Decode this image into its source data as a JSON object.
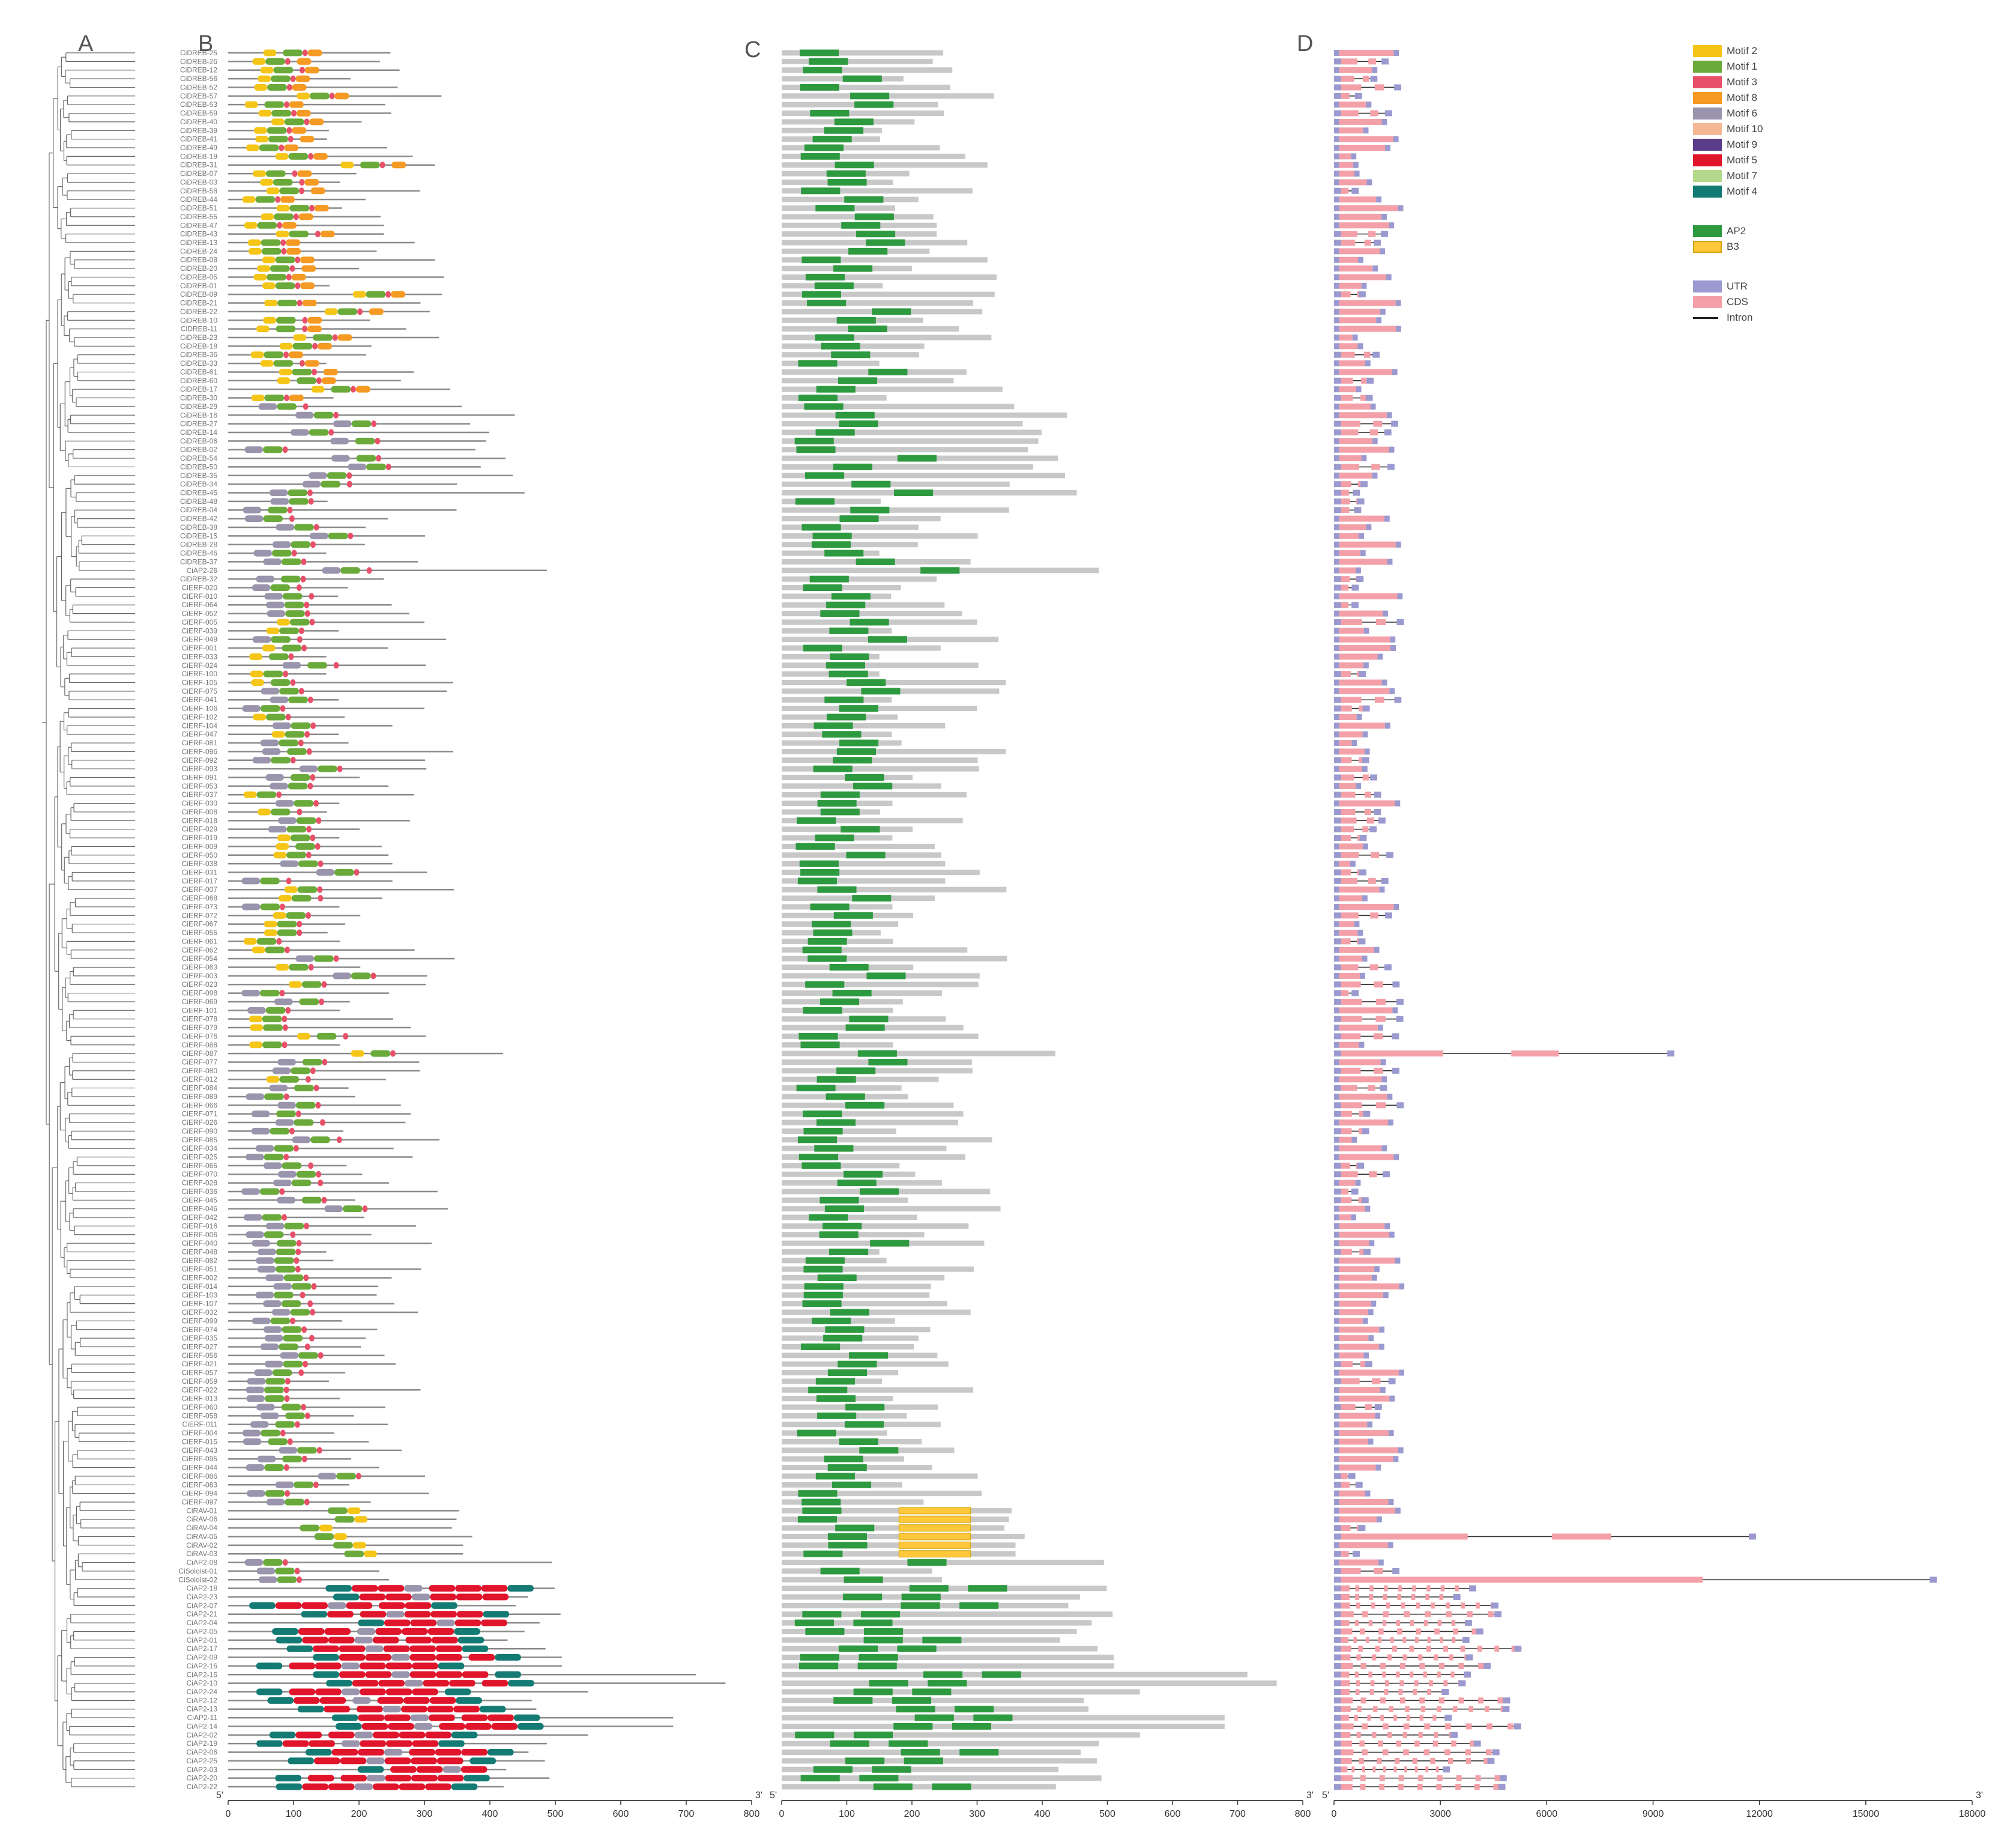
{
  "panels": {
    "a": "A",
    "b": "B",
    "c": "C",
    "d": "D"
  },
  "genes": [
    "CiDREB-25",
    "CiDREB-26",
    "CiDREB-12",
    "CiDREB-56",
    "CiDREB-52",
    "CiDREB-57",
    "CiDREB-53",
    "CiDREB-59",
    "CiDREB-40",
    "CiDREB-39",
    "CiDREB-41",
    "CiDREB-49",
    "CiDREB-19",
    "CiDREB-31",
    "CiDREB-07",
    "CiDREB-03",
    "CiDREB-58",
    "CiDREB-44",
    "CiDREB-51",
    "CiDREB-55",
    "CiDREB-47",
    "CiDREB-43",
    "CiDREB-13",
    "CiDREB-24",
    "CiDREB-08",
    "CiDREB-20",
    "CiDREB-05",
    "CiDREB-01",
    "CiDREB-09",
    "CiDREB-21",
    "CiDREB-22",
    "CiDREB-10",
    "CiDREB-11",
    "CiDREB-23",
    "CiDREB-18",
    "CiDREB-36",
    "CiDREB-33",
    "CiDREB-61",
    "CiDREB-60",
    "CiDREB-17",
    "CiDREB-30",
    "CiDREB-29",
    "CiDREB-16",
    "CiDREB-27",
    "CiDREB-14",
    "CiDREB-06",
    "CiDREB-02",
    "CiDREB-54",
    "CiDREB-50",
    "CiDREB-35",
    "CiDREB-34",
    "CiDREB-45",
    "CiDREB-48",
    "CiDREB-04",
    "CiDREB-42",
    "CiDREB-38",
    "CiDREB-15",
    "CiDREB-28",
    "CiDREB-46",
    "CiDREB-37",
    "CiAP2-26",
    "CiDREB-32",
    "CiERF-020",
    "CiERF-010",
    "CiERF-064",
    "CiERF-052",
    "CiERF-005",
    "CiERF-039",
    "CiERF-049",
    "CiERF-001",
    "CiERF-033",
    "CiERF-024",
    "CiERF-100",
    "CiERF-105",
    "CiERF-075",
    "CiERF-041",
    "CiERF-106",
    "CiERF-102",
    "CiERF-104",
    "CiERF-047",
    "CiERF-081",
    "CiERF-096",
    "CiERF-092",
    "CiERF-093",
    "CiERF-091",
    "CiERF-053",
    "CiERF-037",
    "CiERF-030",
    "CiERF-008",
    "CiERF-018",
    "CiERF-029",
    "CiERF-019",
    "CiERF-009",
    "CiERF-050",
    "CiERF-038",
    "CiERF-031",
    "CiERF-017",
    "CiERF-007",
    "CiERF-068",
    "CiERF-073",
    "CiERF-072",
    "CiERF-067",
    "CiERF-055",
    "CiERF-061",
    "CiERF-062",
    "CiERF-054",
    "CiERF-063",
    "CiERF-003",
    "CiERF-023",
    "CiERF-098",
    "CiERF-069",
    "CiERF-101",
    "CiERF-078",
    "CiERF-079",
    "CiERF-076",
    "CiERF-088",
    "CiERF-087",
    "CiERF-077",
    "CiERF-080",
    "CiERF-012",
    "CiERF-084",
    "CiERF-089",
    "CiERF-066",
    "CiERF-071",
    "CiERF-026",
    "CiERF-090",
    "CiERF-085",
    "CiERF-034",
    "CiERF-025",
    "CiERF-065",
    "CiERF-070",
    "CiERF-028",
    "CiERF-036",
    "CiERF-045",
    "CiERF-046",
    "CiERF-042",
    "CiERF-016",
    "CiERF-006",
    "CiERF-040",
    "CiERF-048",
    "CiERF-082",
    "CiERF-051",
    "CiERF-002",
    "CiERF-014",
    "CiERF-103",
    "CiERF-107",
    "CiERF-032",
    "CiERF-099",
    "CiERF-074",
    "CiERF-035",
    "CiERF-027",
    "CiERF-056",
    "CiERF-021",
    "CiERF-057",
    "CiERF-059",
    "CiERF-022",
    "CiERF-013",
    "CiERF-060",
    "CiERF-058",
    "CiERF-011",
    "CiERF-004",
    "CiERF-015",
    "CiERF-043",
    "CiERF-095",
    "CiERF-044",
    "CiERF-086",
    "CiERF-083",
    "CiERF-094",
    "CiERF-097",
    "CiRAV-01",
    "CiRAV-06",
    "CiRAV-04",
    "CiRAV-05",
    "CiRAV-02",
    "CiRAV-03",
    "CiAP2-08",
    "CiSoloist-01",
    "CiSoloist-02",
    "CiAP2-18",
    "CiAP2-23",
    "CiAP2-07",
    "CiAP2-21",
    "CiAP2-04",
    "CiAP2-05",
    "CiAP2-01",
    "CiAP2-17",
    "CiAP2-09",
    "CiAP2-16",
    "CiAP2-15",
    "CiAP2-10",
    "CiAP2-24",
    "CiAP2-12",
    "CiAP2-13",
    "CiAP2-11",
    "CiAP2-14",
    "CiAP2-02",
    "CiAP2-19",
    "CiAP2-06",
    "CiAP2-25",
    "CiAP2-03",
    "CiAP2-20",
    "CiAP2-22"
  ],
  "legend_motifs": [
    {
      "label": "Motif 2",
      "color": "#f5c518"
    },
    {
      "label": "Motif 1",
      "color": "#6aaa3a"
    },
    {
      "label": "Motif 3",
      "color": "#e8506a"
    },
    {
      "label": "Motif 8",
      "color": "#f59a23"
    },
    {
      "label": "Motif 6",
      "color": "#9a94ad"
    },
    {
      "label": "Motif 10",
      "color": "#f5b895"
    },
    {
      "label": "Motif 9",
      "color": "#5a3c8a"
    },
    {
      "label": "Motif 5",
      "color": "#e0142a"
    },
    {
      "label": "Motif 7",
      "color": "#b5d98a"
    },
    {
      "label": "Motif 4",
      "color": "#137a74"
    }
  ],
  "legend_domains": [
    {
      "label": "AP2",
      "color": "#2e9a40"
    },
    {
      "label": "B3",
      "color": "#ffc83a"
    }
  ],
  "legend_structure": [
    {
      "label": "UTR",
      "color": "#9a9ad0"
    },
    {
      "label": "CDS",
      "color": "#f4a0a8"
    }
  ],
  "legend_intron": "Intron",
  "axis_b": {
    "ticks": [
      "0",
      "100",
      "200",
      "300",
      "400",
      "500",
      "600",
      "700",
      "800"
    ],
    "end5": "5'",
    "end3": "3'"
  },
  "axis_c": {
    "ticks": [
      "0",
      "100",
      "200",
      "300",
      "400",
      "500",
      "600",
      "700",
      "800"
    ],
    "end5": "5'",
    "end3": "3'"
  },
  "axis_d": {
    "ticks": [
      "0",
      "3000",
      "6000",
      "9000",
      "12000",
      "15000",
      "18000"
    ],
    "end5": "5'",
    "end3": "3'"
  },
  "chart_data": {
    "type": "gene-structure-diagram",
    "title": "",
    "panels": [
      {
        "id": "A",
        "kind": "phylogenetic tree"
      },
      {
        "id": "B",
        "kind": "conserved motifs",
        "xlim": [
          0,
          800
        ]
      },
      {
        "id": "C",
        "kind": "conserved domains",
        "xlim": [
          0,
          800
        ]
      },
      {
        "id": "D",
        "kind": "gene structure",
        "xlim": [
          0,
          18000
        ]
      }
    ],
    "protein_lengths_note": "approximate, read from panels B/C",
    "sample_lengths": {
      "CiDREB-25": 212,
      "CiERF-087": 420,
      "CiAP2-10": 760,
      "CiAP2-22": 410
    },
    "groups": [
      "DREB",
      "ERF",
      "RAV",
      "Soloist",
      "AP2"
    ]
  }
}
